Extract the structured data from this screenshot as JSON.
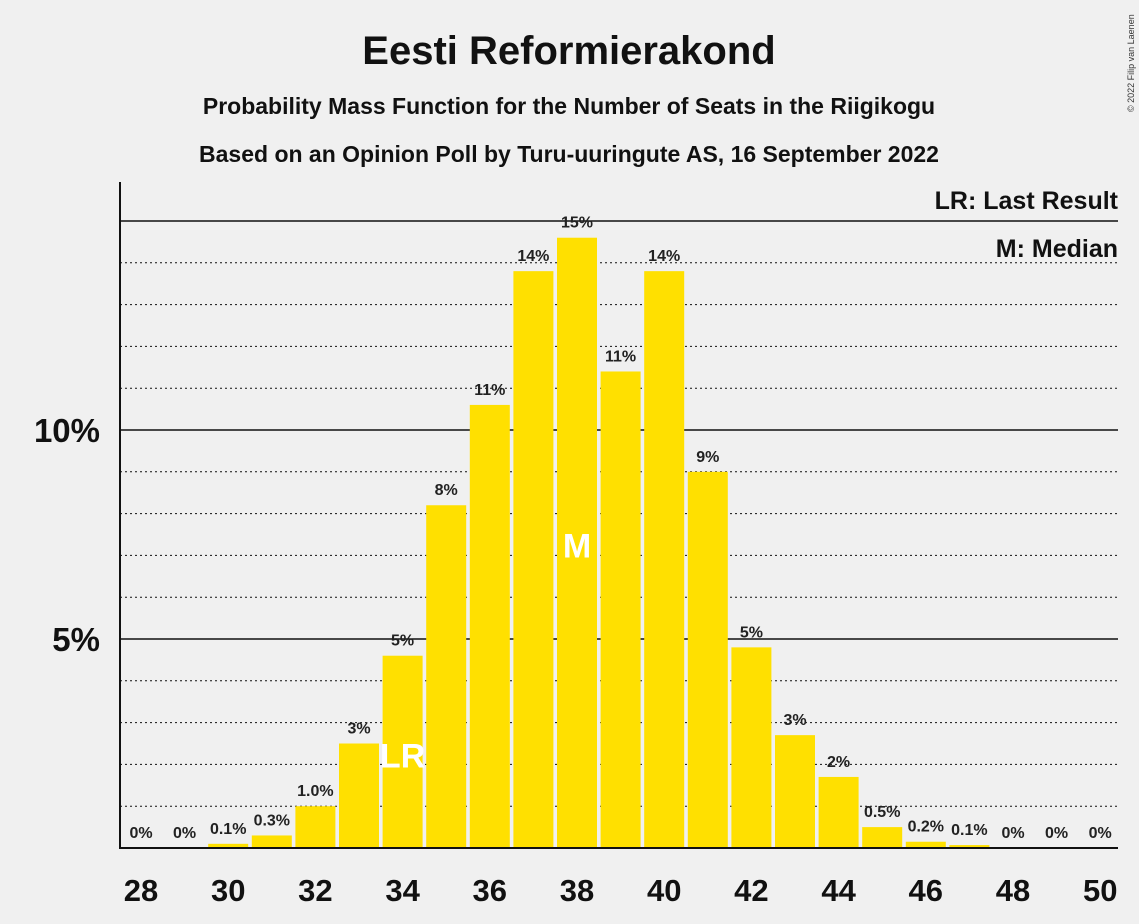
{
  "title": "Eesti Reformierakond",
  "subtitle1": "Probability Mass Function for the Number of Seats in the Riigikogu",
  "subtitle2": "Based on an Opinion Poll by Turu-uuringute AS, 16 September 2022",
  "copyright": "© 2022 Filip van Laenen",
  "legend": {
    "last_result": "LR: Last Result",
    "median": "M: Median"
  },
  "colors": {
    "bar": "#FFE000",
    "background": "#f0f0f0",
    "axis": "#111111"
  },
  "chart_data": {
    "type": "bar",
    "categories": [
      28,
      29,
      30,
      31,
      32,
      33,
      34,
      35,
      36,
      37,
      38,
      39,
      40,
      41,
      42,
      43,
      44,
      45,
      46,
      47,
      48,
      49,
      50
    ],
    "values": [
      0,
      0,
      0.1,
      0.3,
      1.0,
      2.5,
      4.6,
      8.2,
      10.6,
      13.8,
      14.6,
      11.4,
      13.8,
      9.0,
      4.8,
      2.7,
      1.7,
      0.5,
      0.15,
      0.07,
      0,
      0,
      0
    ],
    "data_labels": [
      "0%",
      "0%",
      "0.1%",
      "0.3%",
      "1.0%",
      "3%",
      "5%",
      "8%",
      "11%",
      "14%",
      "15%",
      "11%",
      "14%",
      "9%",
      "5%",
      "3%",
      "2%",
      "0.5%",
      "0.2%",
      "0.1%",
      "0%",
      "0%",
      "0%"
    ],
    "x_tick_labels": [
      "28",
      "30",
      "32",
      "34",
      "36",
      "38",
      "40",
      "42",
      "44",
      "46",
      "48",
      "50"
    ],
    "y_tick_labels": [
      "5%",
      "10%"
    ],
    "ylim": [
      0,
      15.9
    ],
    "last_result": {
      "seat": 34,
      "label": "LR"
    },
    "median": {
      "seat": 38,
      "label": "M"
    },
    "grid": true,
    "legend_position": "top-right"
  }
}
